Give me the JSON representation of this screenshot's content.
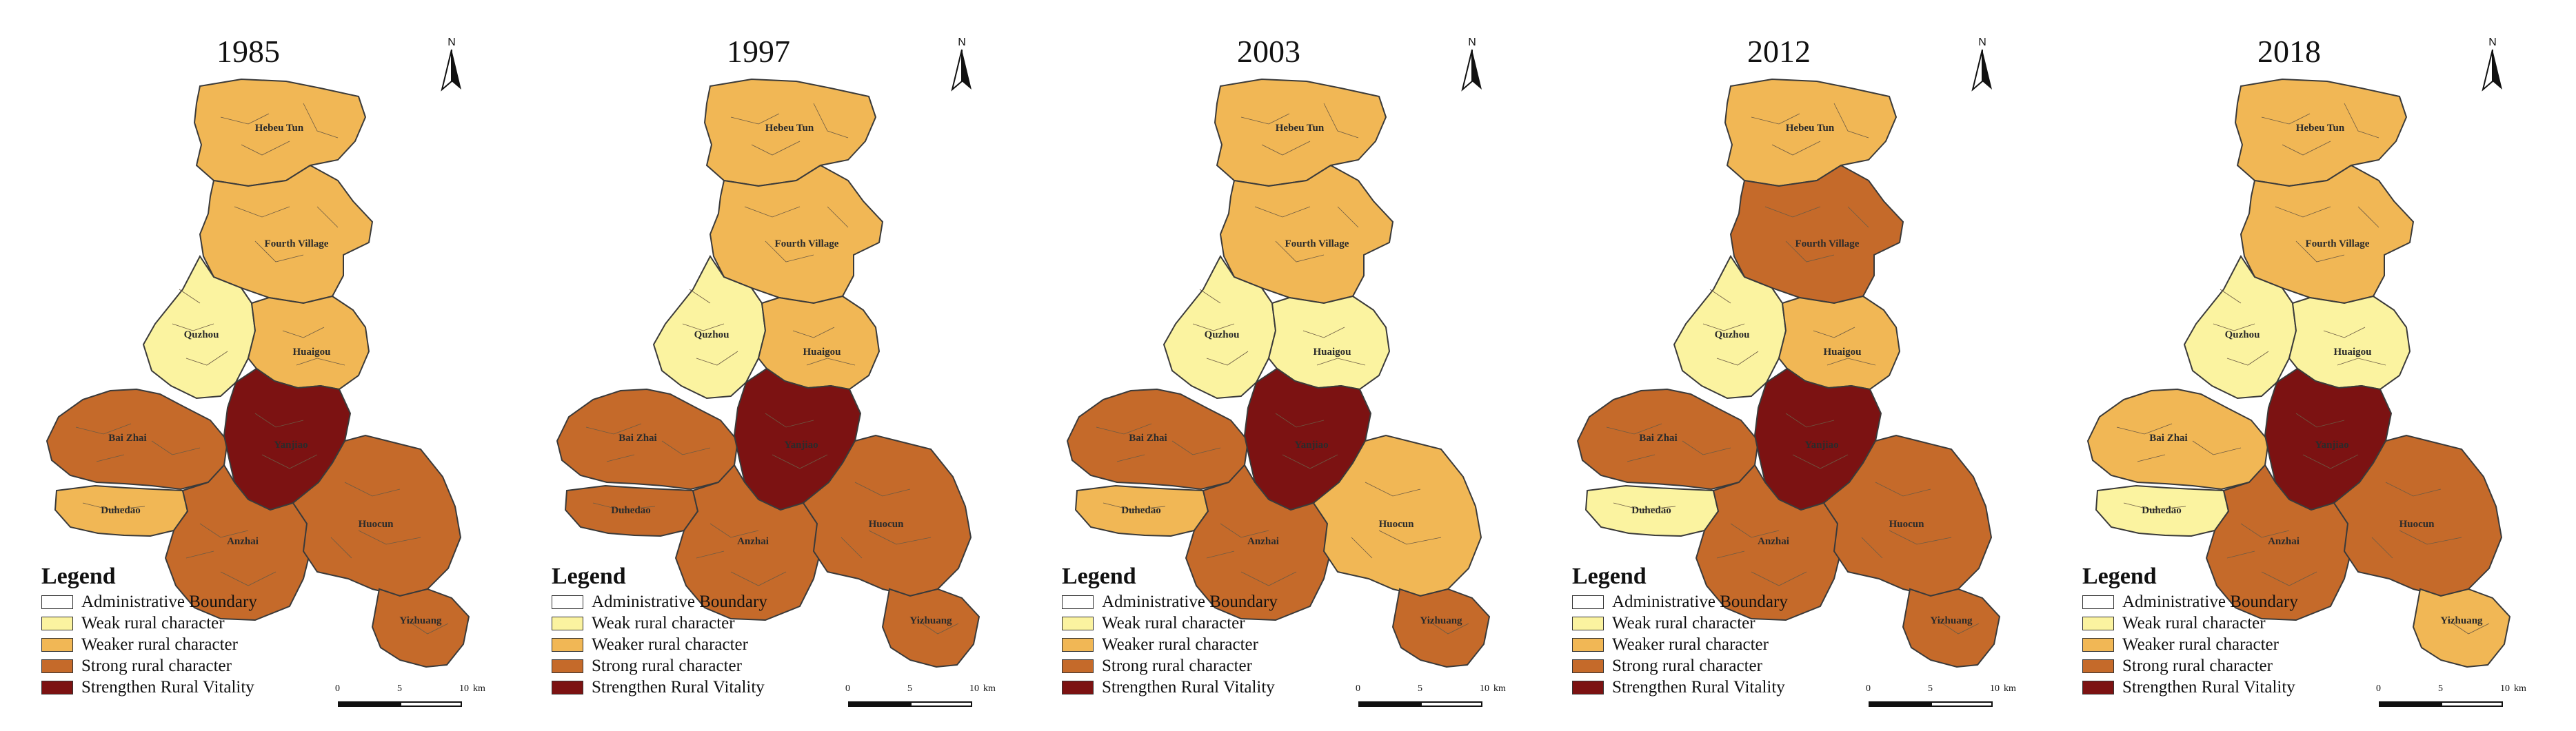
{
  "colors": {
    "weak": "#fbf3a0",
    "weaker": "#f1b755",
    "strong": "#c56a2a",
    "vitality": "#7c1212",
    "boundary_stroke": "#3a3a3a"
  },
  "legend": {
    "title": "Legend",
    "items": [
      {
        "label": "Administrative Boundary",
        "color": "#ffffff"
      },
      {
        "label": "Weak rural character",
        "color": "#fbf3a0"
      },
      {
        "label": "Weaker rural character",
        "color": "#f1b755"
      },
      {
        "label": "Strong rural character",
        "color": "#c56a2a"
      },
      {
        "label": "Strengthen Rural Vitality",
        "color": "#7c1212"
      }
    ]
  },
  "north_arrow": {
    "label": "N"
  },
  "scale_bar": {
    "ticks": [
      "0",
      "5",
      "10"
    ],
    "unit": "km"
  },
  "regions": [
    "Hebeu Tun",
    "Fourth Village",
    "Quzhou",
    "Huaigou",
    "Bai Zhai",
    "Yanjiao",
    "Duhedao",
    "Anzhai",
    "Huocun",
    "Yizhuang"
  ],
  "panels": [
    {
      "year": "1985",
      "classes": {
        "Hebeu Tun": "weaker",
        "Fourth Village": "weaker",
        "Quzhou": "weak",
        "Huaigou": "weaker",
        "Bai Zhai": "strong",
        "Yanjiao": "vitality",
        "Duhedao": "weaker",
        "Anzhai": "strong",
        "Huocun": "strong",
        "Yizhuang": "strong"
      }
    },
    {
      "year": "1997",
      "classes": {
        "Hebeu Tun": "weaker",
        "Fourth Village": "weaker",
        "Quzhou": "weak",
        "Huaigou": "weaker",
        "Bai Zhai": "strong",
        "Yanjiao": "vitality",
        "Duhedao": "strong",
        "Anzhai": "strong",
        "Huocun": "strong",
        "Yizhuang": "strong"
      }
    },
    {
      "year": "2003",
      "classes": {
        "Hebeu Tun": "weaker",
        "Fourth Village": "weaker",
        "Quzhou": "weak",
        "Huaigou": "weak",
        "Bai Zhai": "strong",
        "Yanjiao": "vitality",
        "Duhedao": "weaker",
        "Anzhai": "strong",
        "Huocun": "weaker",
        "Yizhuang": "strong"
      }
    },
    {
      "year": "2012",
      "classes": {
        "Hebeu Tun": "weaker",
        "Fourth Village": "strong",
        "Quzhou": "weak",
        "Huaigou": "weaker",
        "Bai Zhai": "strong",
        "Yanjiao": "vitality",
        "Duhedao": "weak",
        "Anzhai": "strong",
        "Huocun": "strong",
        "Yizhuang": "strong"
      }
    },
    {
      "year": "2018",
      "classes": {
        "Hebeu Tun": "weaker",
        "Fourth Village": "weaker",
        "Quzhou": "weak",
        "Huaigou": "weak",
        "Bai Zhai": "weaker",
        "Yanjiao": "vitality",
        "Duhedao": "weak",
        "Anzhai": "strong",
        "Huocun": "strong",
        "Yizhuang": "weaker"
      }
    }
  ]
}
